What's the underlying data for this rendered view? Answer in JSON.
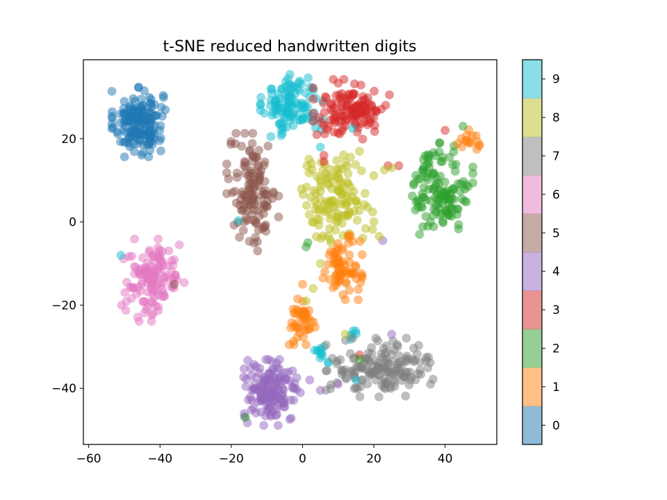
{
  "chart_data": {
    "type": "scatter",
    "title": "t-SNE reduced handwritten digits",
    "xlabel": "",
    "ylabel": "",
    "xlim": [
      -61.5,
      54.5
    ],
    "ylim": [
      -53.5,
      39
    ],
    "x_ticks": [
      -60,
      -40,
      -20,
      0,
      20,
      40
    ],
    "y_ticks": [
      -40,
      -20,
      0,
      20
    ],
    "x_tick_labels": [
      "−60",
      "−40",
      "−20",
      "0",
      "20",
      "40"
    ],
    "y_tick_labels": [
      "−40",
      "−20",
      "0",
      "20"
    ],
    "point_alpha": 0.5,
    "colorbar": {
      "labels": [
        "0",
        "1",
        "2",
        "3",
        "4",
        "5",
        "6",
        "7",
        "8",
        "9"
      ],
      "colors": [
        "#1f77b4",
        "#ff7f0e",
        "#2ca02c",
        "#d62728",
        "#9467bd",
        "#8c564b",
        "#e377c2",
        "#7f7f7f",
        "#bcbd22",
        "#17becf"
      ]
    },
    "clusters": [
      {
        "digit": 0,
        "cx": -46,
        "cy": 24,
        "sx": 3.4,
        "sy": 3.8,
        "n": 170
      },
      {
        "digit": 9,
        "cx": -3,
        "cy": 28,
        "sx": 4.0,
        "sy": 3.4,
        "n": 120
      },
      {
        "digit": 3,
        "cx": 14,
        "cy": 27,
        "sx": 5.0,
        "sy": 3.3,
        "n": 130
      },
      {
        "digit": 5,
        "cx": -14,
        "cy": 7,
        "sx": 3.3,
        "sy": 6.5,
        "n": 130
      },
      {
        "digit": 8,
        "cx": 9,
        "cy": 6,
        "sx": 5.0,
        "sy": 5.0,
        "n": 130
      },
      {
        "digit": 2,
        "cx": 39,
        "cy": 8,
        "sx": 4.0,
        "sy": 5.0,
        "n": 130
      },
      {
        "digit": 1,
        "cx": 47,
        "cy": 19.5,
        "sx": 1.6,
        "sy": 1.2,
        "n": 16
      },
      {
        "digit": 6,
        "cx": -42,
        "cy": -14,
        "sx": 4.0,
        "sy": 4.5,
        "n": 130
      },
      {
        "digit": 1,
        "cx": 11,
        "cy": -11,
        "sx": 2.6,
        "sy": 3.5,
        "n": 75
      },
      {
        "digit": 1,
        "cx": 0,
        "cy": -24,
        "sx": 1.7,
        "sy": 2.5,
        "n": 45
      },
      {
        "digit": 9,
        "cx": 6,
        "cy": -31,
        "sx": 1.2,
        "sy": 1.3,
        "n": 12
      },
      {
        "digit": 9,
        "cx": 14,
        "cy": -27.5,
        "sx": 0.8,
        "sy": 0.6,
        "n": 6
      },
      {
        "digit": 7,
        "cx": 22,
        "cy": -35,
        "sx": 7.0,
        "sy": 3.2,
        "n": 160
      },
      {
        "digit": 4,
        "cx": -9,
        "cy": -41,
        "sx": 3.8,
        "sy": 3.6,
        "n": 150
      }
    ],
    "outliers": [
      {
        "digit": 2,
        "x": 45,
        "y": 23
      },
      {
        "digit": 3,
        "x": 40,
        "y": 22
      },
      {
        "digit": 3,
        "x": 27,
        "y": 13.5
      },
      {
        "digit": 3,
        "x": 24,
        "y": 13.5
      },
      {
        "digit": 8,
        "x": 25,
        "y": 13
      },
      {
        "digit": 8,
        "x": 23,
        "y": 12.5
      },
      {
        "digit": 3,
        "x": 6,
        "y": 16
      },
      {
        "digit": 3,
        "x": 6,
        "y": 14.5
      },
      {
        "digit": 3,
        "x": 4,
        "y": 21
      },
      {
        "digit": 9,
        "x": 14,
        "y": 22.5
      },
      {
        "digit": 9,
        "x": 5,
        "y": 18
      },
      {
        "digit": 9,
        "x": -18,
        "y": 0.3
      },
      {
        "digit": 2,
        "x": 1,
        "y": -6
      },
      {
        "digit": 2,
        "x": 1.5,
        "y": -5
      },
      {
        "digit": 4,
        "x": 22.5,
        "y": -4.5
      },
      {
        "digit": 8,
        "x": 21.5,
        "y": -3.5
      },
      {
        "digit": 5,
        "x": -36,
        "y": -15
      },
      {
        "digit": 9,
        "x": -51,
        "y": -8
      },
      {
        "digit": 2,
        "x": -16,
        "y": -47
      },
      {
        "digit": 8,
        "x": 5,
        "y": -10
      },
      {
        "digit": 8,
        "x": 3,
        "y": -16
      },
      {
        "digit": 8,
        "x": 1,
        "y": -19
      },
      {
        "digit": 1,
        "x": 0,
        "y": -15
      },
      {
        "digit": 8,
        "x": 12,
        "y": -27
      },
      {
        "digit": 4,
        "x": 25,
        "y": -27
      },
      {
        "digit": 3,
        "x": 16,
        "y": -32
      },
      {
        "digit": 2,
        "x": 16,
        "y": -33
      },
      {
        "digit": 4,
        "x": 10,
        "y": -39
      },
      {
        "digit": 9,
        "x": 15,
        "y": -38
      },
      {
        "digit": 4,
        "x": 2,
        "y": -38
      },
      {
        "digit": 4,
        "x": 5,
        "y": -40.5
      }
    ]
  }
}
